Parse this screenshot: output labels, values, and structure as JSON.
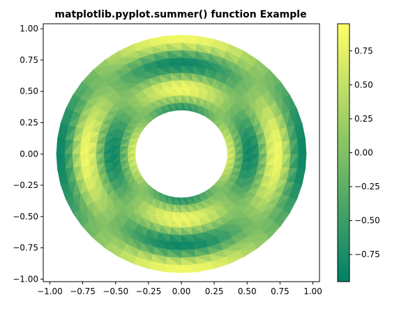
{
  "chart_data": {
    "type": "heatmap",
    "title": "matplotlib.pyplot.summer() function Example",
    "xlabel": "",
    "ylabel": "",
    "xlim": [
      -1.05,
      1.05
    ],
    "ylim": [
      -1.02,
      1.04
    ],
    "x_ticks": [
      "−1.00",
      "−0.75",
      "−0.50",
      "−0.25",
      "0.00",
      "0.25",
      "0.50",
      "0.75",
      "1.00"
    ],
    "x_tick_values": [
      -1.0,
      -0.75,
      -0.5,
      -0.25,
      0.0,
      0.25,
      0.5,
      0.75,
      1.0
    ],
    "y_ticks": [
      "1.00",
      "0.75",
      "0.50",
      "0.25",
      "0.00",
      "−0.25",
      "−0.50",
      "−0.75",
      "−1.00"
    ],
    "y_tick_values": [
      1.0,
      0.75,
      0.5,
      0.25,
      0.0,
      -0.25,
      -0.5,
      -0.75,
      -1.0
    ],
    "colormap": "summer",
    "colormap_stops": [
      "#008066",
      "#ffff66"
    ],
    "colorbar": {
      "range": [
        -0.95,
        0.95
      ],
      "ticks": [
        "0.75",
        "0.50",
        "0.25",
        "0.00",
        "−0.25",
        "−0.50",
        "−0.75"
      ],
      "tick_values": [
        0.75,
        0.5,
        0.25,
        0.0,
        -0.25,
        -0.5,
        -0.75
      ]
    },
    "shape": {
      "inner_radius": 0.35,
      "outer_radius": 0.95,
      "angle_start_deg": -45,
      "angle_end_deg": 315
    },
    "grid": false,
    "legend": "colorbar-right"
  }
}
